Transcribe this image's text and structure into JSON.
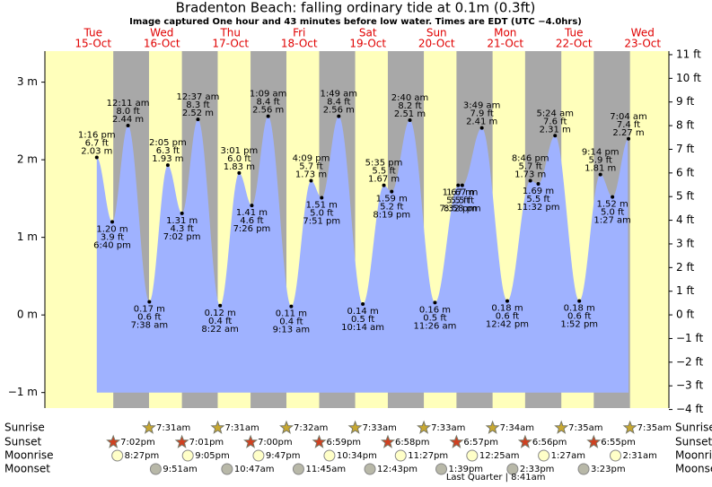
{
  "chart_data": {
    "type": "tide",
    "title": "Bradenton Beach: falling  ordinary tide at 0.1m (0.3ft)",
    "subtitle": "Image captured One hour and 43 minutes before low water. Times are EDT (UTC −4.0hrs)",
    "ylim": [
      -1.2,
      3.4
    ],
    "yticks": [
      {
        "value": -1,
        "label": "−1 m"
      },
      {
        "value": 0,
        "label": "0 m"
      },
      {
        "value": 1,
        "label": "1 m"
      },
      {
        "value": 2,
        "label": "2 m"
      },
      {
        "value": 3,
        "label": "3 m"
      }
    ],
    "y2lim": [
      -3.94,
      11.15
    ],
    "y2ticks": [
      {
        "value": -4,
        "label": "−4 ft"
      },
      {
        "value": -3,
        "label": "−3 ft"
      },
      {
        "value": -2,
        "label": "−2 ft"
      },
      {
        "value": -1,
        "label": "−1 ft"
      },
      {
        "value": 0,
        "label": "0 ft"
      },
      {
        "value": 1,
        "label": "1 ft"
      },
      {
        "value": 2,
        "label": "2 ft"
      },
      {
        "value": 3,
        "label": "3 ft"
      },
      {
        "value": 4,
        "label": "4 ft"
      },
      {
        "value": 5,
        "label": "5 ft"
      },
      {
        "value": 6,
        "label": "6 ft"
      },
      {
        "value": 7,
        "label": "7 ft"
      },
      {
        "value": 8,
        "label": "8 ft"
      },
      {
        "value": 9,
        "label": "9 ft"
      },
      {
        "value": 10,
        "label": "10 ft"
      },
      {
        "value": 11,
        "label": "11 ft"
      }
    ],
    "colors": {
      "day": "#ffffbb",
      "night": "#a8a8a8",
      "water": "#9fb2ff",
      "header": "#e00000"
    },
    "rows": [
      "Sunrise",
      "Sunset",
      "Moonrise",
      "Moonset"
    ],
    "days": [
      {
        "label": "Tue",
        "date": "15-Oct",
        "sunset": "7:02pm",
        "moonrise": "8:27pm",
        "tides": [
          {
            "time": "1:16 pm",
            "m": 2.03,
            "m_label": "2.03 m",
            "ft": "6.7 ft"
          },
          {
            "time": "6:40 pm",
            "m": 1.2,
            "m_label": "1.20 m",
            "ft": "3.9 ft"
          }
        ]
      },
      {
        "label": "Wed",
        "date": "16-Oct",
        "sunrise": "7:31am",
        "sunset": "7:01pm",
        "moonrise": "9:05pm",
        "moonset": "9:51am",
        "tides": [
          {
            "time": "12:11 am",
            "m": 2.44,
            "m_label": "2.44 m",
            "ft": "8.0 ft"
          },
          {
            "time": "7:38 am",
            "m": 0.17,
            "m_label": "0.17 m",
            "ft": "0.6 ft"
          },
          {
            "time": "2:05 pm",
            "m": 1.93,
            "m_label": "1.93 m",
            "ft": "6.3 ft"
          },
          {
            "time": "7:02 pm",
            "m": 1.31,
            "m_label": "1.31 m",
            "ft": "4.3 ft"
          }
        ]
      },
      {
        "label": "Thu",
        "date": "17-Oct",
        "sunrise": "7:31am",
        "sunset": "7:00pm",
        "moonrise": "9:47pm",
        "moonset": "10:47am",
        "tides": [
          {
            "time": "12:37 am",
            "m": 2.52,
            "m_label": "2.52 m",
            "ft": "8.3 ft"
          },
          {
            "time": "8:22 am",
            "m": 0.12,
            "m_label": "0.12 m",
            "ft": "0.4 ft"
          },
          {
            "time": "3:01 pm",
            "m": 1.83,
            "m_label": "1.83 m",
            "ft": "6.0 ft"
          },
          {
            "time": "7:26 pm",
            "m": 1.41,
            "m_label": "1.41 m",
            "ft": "4.6 ft"
          }
        ]
      },
      {
        "label": "Fri",
        "date": "18-Oct",
        "sunrise": "7:32am",
        "sunset": "6:59pm",
        "moonrise": "10:34pm",
        "moonset": "11:45am",
        "tides": [
          {
            "time": "1:09 am",
            "m": 2.56,
            "m_label": "2.56 m",
            "ft": "8.4 ft"
          },
          {
            "time": "9:13 am",
            "m": 0.11,
            "m_label": "0.11 m",
            "ft": "0.4 ft"
          },
          {
            "time": "4:09 pm",
            "m": 1.73,
            "m_label": "1.73 m",
            "ft": "5.7 ft"
          },
          {
            "time": "7:51 pm",
            "m": 1.51,
            "m_label": "1.51 m",
            "ft": "5.0 ft"
          }
        ]
      },
      {
        "label": "Sat",
        "date": "19-Oct",
        "sunrise": "7:33am",
        "sunset": "6:58pm",
        "moonrise": "11:27pm",
        "moonset": "12:43pm",
        "tides": [
          {
            "time": "1:49 am",
            "m": 2.56,
            "m_label": "2.56 m",
            "ft": "8.4 ft"
          },
          {
            "time": "10:14 am",
            "m": 0.14,
            "m_label": "0.14 m",
            "ft": "0.5 ft"
          },
          {
            "time": "5:35 pm",
            "m": 1.67,
            "m_label": "1.67 m",
            "ft": "5.5 ft"
          },
          {
            "time": "8:19 pm",
            "m": 1.59,
            "m_label": "1.59 m",
            "ft": "5.2 ft"
          }
        ]
      },
      {
        "label": "Sun",
        "date": "20-Oct",
        "sunrise": "7:33am",
        "sunset": "6:57pm",
        "moonset": "1:39pm",
        "tides": [
          {
            "time": "2:40 am",
            "m": 2.51,
            "m_label": "2.51 m",
            "ft": "8.2 ft"
          },
          {
            "time": "11:26 am",
            "m": 0.16,
            "m_label": "0.16 m",
            "ft": "0.5 ft"
          },
          {
            "time": "7:32 pm",
            "m": 1.67,
            "m_label": "1.67 m",
            "ft": "5.5 ft"
          },
          {
            "time": "8:58 pm",
            "m": 1.67,
            "m_label": "1.67 m",
            "ft": "5.5 ft"
          }
        ]
      },
      {
        "label": "Mon",
        "date": "21-Oct",
        "sunrise": "7:34am",
        "sunset": "6:56pm",
        "moonrise": "12:25am",
        "moonset": "2:33pm",
        "moon_phase": "Last Quarter | 8:41am",
        "tides": [
          {
            "time": "3:49 am",
            "m": 2.41,
            "m_label": "2.41 m",
            "ft": "7.9 ft"
          },
          {
            "time": "12:42 pm",
            "m": 0.18,
            "m_label": "0.18 m",
            "ft": "0.6 ft"
          },
          {
            "time": "8:46 pm",
            "m": 1.73,
            "m_label": "1.73 m",
            "ft": "5.7 ft"
          },
          {
            "time": "11:32 pm",
            "m": 1.69,
            "m_label": "1.69 m",
            "ft": "5.5 ft"
          }
        ]
      },
      {
        "label": "Tue",
        "date": "22-Oct",
        "sunrise": "7:35am",
        "sunset": "6:55pm",
        "moonrise": "1:27am",
        "moonset": "3:23pm",
        "tides": [
          {
            "time": "5:24 am",
            "m": 2.31,
            "m_label": "2.31 m",
            "ft": "7.6 ft"
          },
          {
            "time": "1:52 pm",
            "m": 0.18,
            "m_label": "0.18 m",
            "ft": "0.6 ft"
          },
          {
            "time": "9:14 pm",
            "m": 1.81,
            "m_label": "1.81 m",
            "ft": "5.9 ft"
          }
        ]
      },
      {
        "label": "Wed",
        "date": "23-Oct",
        "sunrise": "7:35am",
        "moonrise": "2:31am",
        "tides": [
          {
            "time": "1:27 am",
            "m": 1.52,
            "m_label": "1.52 m",
            "ft": "5.0 ft"
          },
          {
            "time": "7:04 am",
            "m": 2.27,
            "m_label": "2.27 m",
            "ft": "7.4 ft"
          }
        ]
      }
    ]
  }
}
